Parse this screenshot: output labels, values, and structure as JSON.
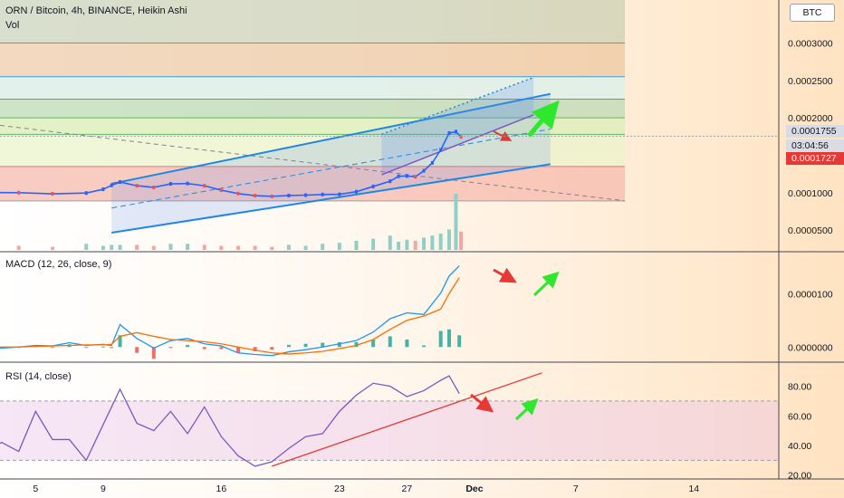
{
  "header": {
    "title": "ORN / Bitcoin, 4h, BINANCE, Heikin Ashi",
    "vol_label": "Vol",
    "currency": "BTC"
  },
  "price_tags": {
    "last": "0.0001755",
    "countdown": "03:04:56",
    "red": "0.0001727"
  },
  "colors": {
    "up": "#26a69a",
    "down": "#ef5350",
    "candle_up": "#2962ff",
    "channel": "#1e88e5",
    "macd": "#2196f3",
    "signal": "#ff6d00",
    "rsi": "#7e57c2",
    "trend_red": "#e53935",
    "arrow_red": "#e53935",
    "arrow_green": "#2ee82e"
  },
  "chart_data": [
    {
      "type": "line",
      "panel": "price",
      "title": "ORN / Bitcoin, 4h, BINANCE, Heikin Ashi",
      "x_ticks": [
        "5",
        "9",
        "16",
        "23",
        "27",
        "Dec",
        "7",
        "14"
      ],
      "x_tick_days": [
        5,
        9,
        16,
        23,
        27,
        31,
        37,
        44
      ],
      "y_ticks": [
        "0.0000500",
        "0.0001000",
        "0.0001500",
        "0.0002000",
        "0.0002500",
        "0.0003000"
      ],
      "ylim": [
        2.35e-05,
        0.0003575
      ],
      "x": [
        2,
        4,
        6,
        8,
        9,
        9.5,
        10,
        11,
        12,
        13,
        14,
        15,
        16,
        17,
        18,
        19,
        20,
        21,
        22,
        23,
        24,
        25,
        26,
        26.5,
        27,
        27.5,
        28,
        28.5,
        29,
        29.5,
        29.9,
        30.2
      ],
      "values": [
        0.0001002,
        0.0001,
        9.85e-05,
        9.95e-05,
        0.0001045,
        0.0001098,
        0.0001142,
        0.0001093,
        0.0001071,
        0.0001118,
        0.0001122,
        0.0001093,
        0.0001033,
        9.88e-05,
        9.6e-05,
        9.51e-05,
        9.62e-05,
        9.67e-05,
        9.76e-05,
        9.78e-05,
        0.0001013,
        0.0001083,
        0.0001153,
        0.0001219,
        0.0001223,
        0.0001212,
        0.0001293,
        0.0001398,
        0.0001572,
        0.0001797,
        0.0001815,
        0.0001745
      ],
      "volume": [
        3,
        4,
        3,
        6,
        4,
        5,
        5,
        5,
        4,
        6,
        6,
        5,
        4,
        4,
        4,
        3,
        5,
        4,
        6,
        7,
        9,
        11,
        14,
        8,
        10,
        9,
        12,
        14,
        16,
        20,
        55,
        18
      ],
      "horizontal_levels": [
        0.0003,
        0.000255,
        0.000225,
        0.0002,
        0.000178,
        0.000135,
        8.9e-05
      ],
      "last_price": 0.0001755,
      "marked_price": 0.0001727
    },
    {
      "type": "line",
      "panel": "macd",
      "title": "MACD (12, 26, close, 9)",
      "y_ticks": [
        "0.0000000",
        "0.0000100"
      ],
      "ylim": [
        -2.5e-06,
        1.75e-05
      ],
      "x": [
        2,
        3,
        4,
        5,
        6,
        7,
        8,
        9,
        9.5,
        10,
        11,
        12,
        13,
        14,
        15,
        16,
        17,
        18,
        19,
        20,
        21,
        22,
        23,
        24,
        25,
        26,
        27,
        28,
        29,
        29.5,
        30.1
      ],
      "series": [
        {
          "key": "macd",
          "values": [
            -2e-07,
            -2e-07,
            0,
            3e-07,
            2e-07,
            8e-07,
            3e-07,
            5e-07,
            3e-07,
            4.2e-06,
            1.6e-06,
            -2e-07,
            1.2e-06,
            1.6e-06,
            6e-07,
            2e-07,
            -1.1e-06,
            -1.4e-06,
            -1.6e-06,
            -9e-07,
            -5e-07,
            0,
            6e-07,
            1.2e-06,
            2.8e-06,
            5.3e-06,
            6.4e-06,
            6.1e-06,
            1.01e-05,
            1.33e-05,
            1.52e-05
          ]
        },
        {
          "key": "signal",
          "values": [
            0,
            0,
            0,
            1e-07,
            2e-07,
            3e-07,
            4e-07,
            4e-07,
            5e-07,
            2e-06,
            2.7e-06,
            2e-06,
            1.4e-06,
            1.2e-06,
            1e-06,
            6e-07,
            0,
            -6e-07,
            -1.1e-06,
            -1.3e-06,
            -1.1e-06,
            -8e-07,
            -3e-07,
            3e-07,
            1.4e-06,
            3.3e-06,
            5e-06,
            5.8e-06,
            7.1e-06,
            1e-05,
            1.3e-05
          ]
        }
      ],
      "histogram": [
        -2e-07,
        -2e-07,
        0,
        2e-07,
        0,
        5e-07,
        -1e-07,
        1e-07,
        -2e-07,
        2.2e-06,
        -1.1e-06,
        -2.2e-06,
        -2e-07,
        4e-07,
        -4e-07,
        -4e-07,
        -1.1e-06,
        -8e-07,
        -5e-07,
        4e-07,
        6e-07,
        8e-07,
        9e-07,
        9e-07,
        1.4e-06,
        2e-06,
        1.4e-06,
        3e-07,
        3e-06,
        3.3e-06,
        2.2e-06
      ]
    },
    {
      "type": "line",
      "panel": "rsi",
      "title": "RSI (14, close)",
      "y_ticks": [
        "20.00",
        "40.00",
        "60.00",
        "80.00"
      ],
      "ylim": [
        18,
        95
      ],
      "x": [
        2,
        3,
        4,
        5,
        6,
        7,
        8,
        9,
        10,
        11,
        12,
        13,
        14,
        15,
        16,
        17,
        18,
        19,
        20,
        21,
        22,
        23,
        24,
        25,
        26,
        27,
        28,
        29,
        29.5,
        30.1
      ],
      "values": [
        38,
        42,
        36,
        63,
        44,
        44,
        30,
        54,
        78,
        55,
        50,
        63,
        48,
        66,
        46,
        33,
        26,
        29,
        38,
        46,
        48,
        63,
        74,
        82,
        80,
        73,
        77,
        84,
        87,
        75
      ],
      "bands": [
        30,
        70
      ]
    }
  ]
}
